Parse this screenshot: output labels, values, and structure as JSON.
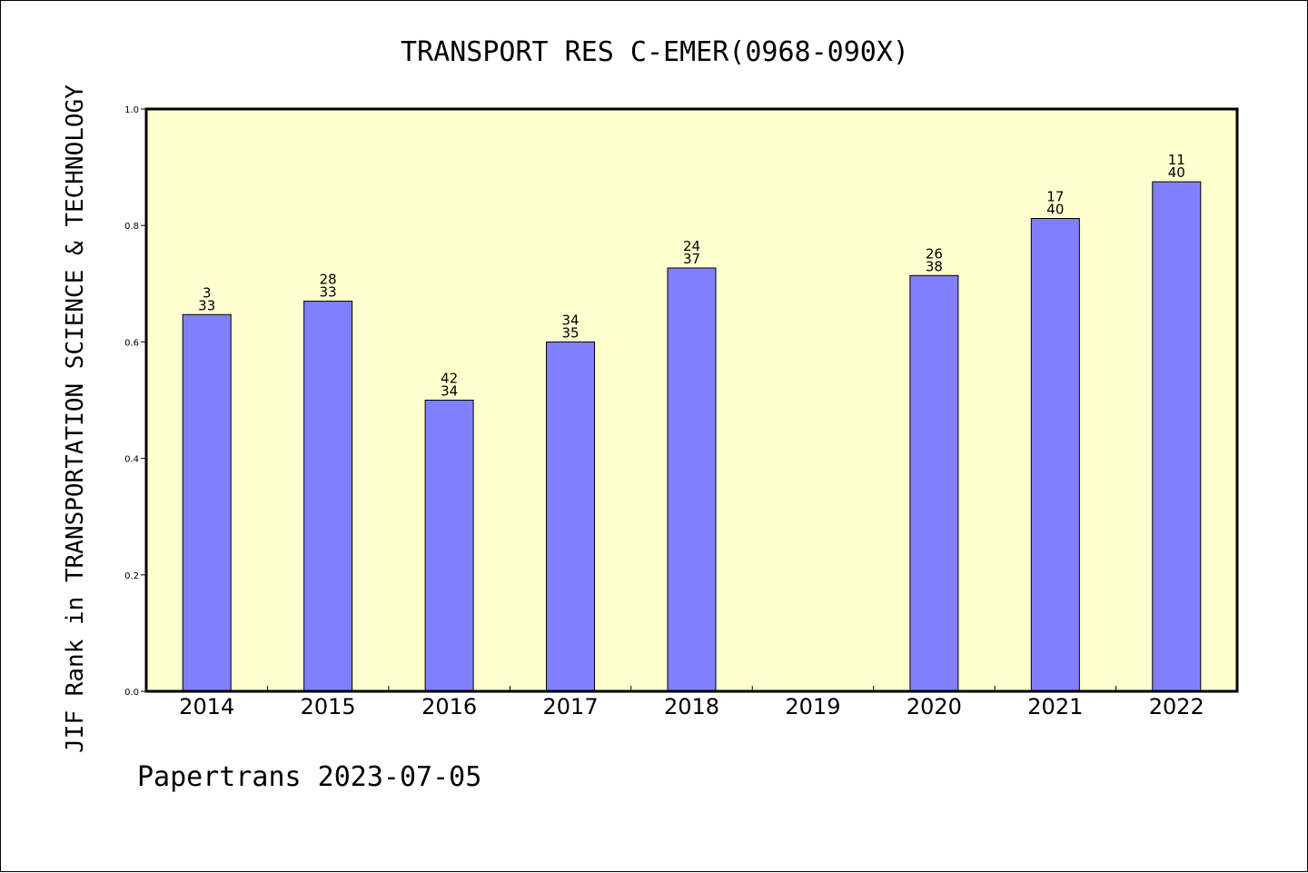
{
  "chart_data": {
    "type": "bar",
    "title": "TRANSPORT RES C-EMER(0968-090X)",
    "xlabel": "",
    "ylabel": "JIF Rank in TRANSPORTATION SCIENCE & TECHNOLOGY",
    "ylim": [
      0.0,
      1.0
    ],
    "yticks": [
      "0.0",
      "0.2",
      "0.4",
      "0.6",
      "0.8",
      "1.0"
    ],
    "categories": [
      "2014",
      "2015",
      "2016",
      "2017",
      "2018",
      "2019",
      "2020",
      "2021",
      "2022"
    ],
    "values": [
      0.647,
      0.67,
      0.5,
      0.6,
      0.727,
      null,
      0.714,
      0.812,
      0.875
    ],
    "annotations": [
      [
        "3",
        "33"
      ],
      [
        "28",
        "33"
      ],
      [
        "42",
        "34"
      ],
      [
        "34",
        "35"
      ],
      [
        "24",
        "37"
      ],
      null,
      [
        "26",
        "38"
      ],
      [
        "17",
        "40"
      ],
      [
        "11",
        "40"
      ]
    ],
    "grid": false,
    "colors": {
      "plot_background": "#ffffd0",
      "bar_fill": "#8080ff",
      "bar_edge": "#000000"
    }
  },
  "footer": "Papertrans 2023-07-05"
}
